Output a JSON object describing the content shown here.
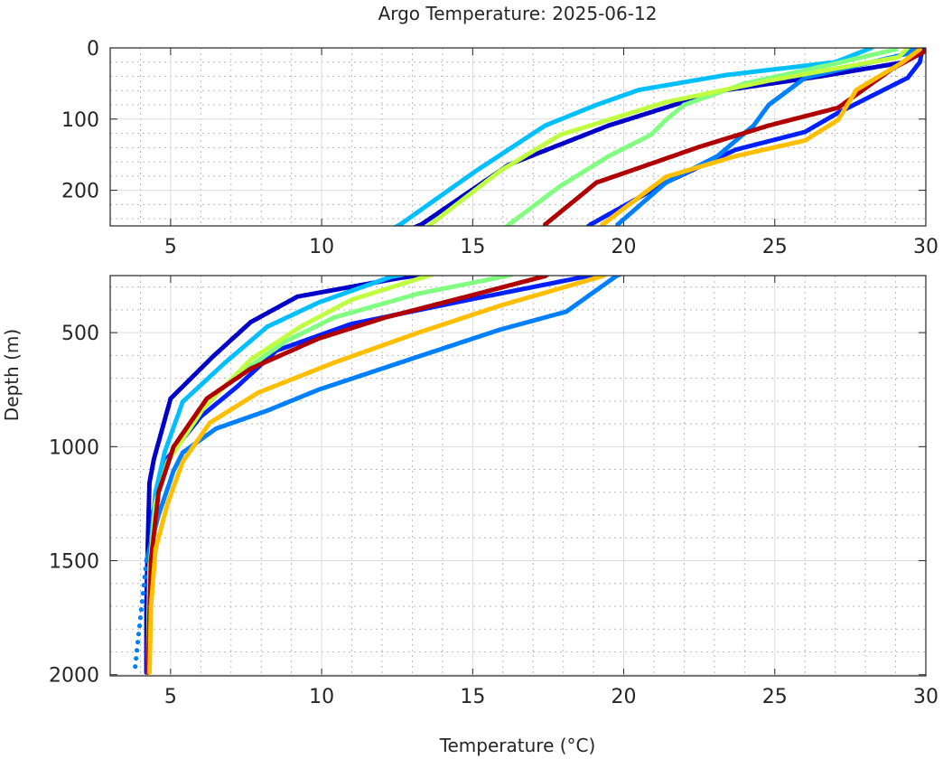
{
  "chart_data": {
    "type": "scatter",
    "title": "Argo Temperature: 2025-06-12",
    "xlabel": "Temperature (°C)",
    "ylabel": "Depth (m)",
    "xlim": [
      3,
      30
    ],
    "xticks": [
      "5",
      "10",
      "15",
      "20",
      "25",
      "30"
    ],
    "xtick_values": [
      5,
      10,
      15,
      20,
      25,
      30
    ],
    "grid": true,
    "minor_grid": true,
    "y_reversed": true,
    "panels": [
      {
        "ylim": [
          0,
          250
        ],
        "yticks": [
          "0",
          "100",
          "200"
        ],
        "ytick_values": [
          0,
          100,
          200
        ],
        "minor_step": 20
      },
      {
        "ylim": [
          250,
          2005
        ],
        "yticks": [
          "500",
          "1000",
          "1500",
          "2000"
        ],
        "ytick_values": [
          500,
          1000,
          1500,
          2000
        ],
        "minor_step": 100
      }
    ],
    "series": [
      {
        "color": "#0000c8",
        "points": [
          [
            29.8,
            0
          ],
          [
            29.3,
            20
          ],
          [
            26.5,
            40
          ],
          [
            23.1,
            61
          ],
          [
            19.5,
            109
          ],
          [
            16.2,
            164
          ],
          [
            13.3,
            248
          ],
          [
            12.6,
            260
          ],
          [
            9.2,
            342
          ],
          [
            7.65,
            454
          ],
          [
            6.4,
            605
          ],
          [
            5.0,
            789
          ],
          [
            4.45,
            1053
          ],
          [
            4.3,
            1158
          ],
          [
            4.25,
            1400
          ],
          [
            4.2,
            1700
          ],
          [
            4.2,
            2000
          ]
        ]
      },
      {
        "color": "#0020ff",
        "points": [
          [
            29.9,
            0
          ],
          [
            29.8,
            20
          ],
          [
            29.4,
            42
          ],
          [
            27.1,
            91
          ],
          [
            26.0,
            118
          ],
          [
            23.7,
            143
          ],
          [
            21.4,
            189
          ],
          [
            18.9,
            248
          ],
          [
            18.7,
            255
          ],
          [
            15.4,
            342
          ],
          [
            11.0,
            461
          ],
          [
            8.5,
            579
          ],
          [
            7.2,
            737
          ],
          [
            6.0,
            868
          ],
          [
            4.8,
            1066
          ],
          [
            4.4,
            1300
          ],
          [
            4.3,
            1600
          ],
          [
            4.25,
            2000
          ]
        ]
      },
      {
        "color": "#00bfff",
        "points": [
          [
            28.2,
            0
          ],
          [
            27.0,
            20
          ],
          [
            23.4,
            38
          ],
          [
            20.5,
            59
          ],
          [
            19.1,
            80
          ],
          [
            17.4,
            109
          ],
          [
            15.1,
            173
          ],
          [
            12.6,
            248
          ],
          [
            12.3,
            255
          ],
          [
            9.9,
            368
          ],
          [
            8.2,
            474
          ],
          [
            6.8,
            632
          ],
          [
            5.4,
            803
          ],
          [
            4.8,
            1026
          ],
          [
            4.5,
            1200
          ],
          [
            4.3,
            1500
          ],
          [
            4.25,
            2000
          ]
        ]
      },
      {
        "color": "#0080ff",
        "points": [
          [
            29.6,
            0
          ],
          [
            29.4,
            8
          ],
          [
            26.0,
            42
          ],
          [
            24.8,
            80
          ],
          [
            24.3,
            109
          ],
          [
            23.1,
            152
          ],
          [
            21.4,
            189
          ],
          [
            19.8,
            248
          ],
          [
            19.75,
            252
          ],
          [
            18.1,
            408
          ],
          [
            15.9,
            487
          ],
          [
            13.2,
            605
          ],
          [
            9.9,
            750
          ],
          [
            8.2,
            842
          ],
          [
            6.5,
            921
          ],
          [
            5.4,
            1026
          ],
          [
            5.1,
            1105
          ],
          [
            4.6,
            1300
          ],
          [
            4.2,
            1500
          ],
          [
            4.0,
            1750
          ],
          [
            3.8,
            2000
          ]
        ]
      },
      {
        "color": "#80ff80",
        "points": [
          [
            29.0,
            2
          ],
          [
            27.1,
            21
          ],
          [
            24.0,
            50
          ],
          [
            22.0,
            80
          ],
          [
            21.4,
            101
          ],
          [
            20.9,
            122
          ],
          [
            19.5,
            152
          ],
          [
            17.9,
            194
          ],
          [
            16.2,
            248
          ],
          [
            16.1,
            252
          ],
          [
            13.2,
            329
          ],
          [
            10.4,
            434
          ],
          [
            8.8,
            539
          ],
          [
            7.1,
            697
          ],
          [
            6.0,
            829
          ],
          [
            5.1,
            1000
          ],
          [
            4.6,
            1200
          ],
          [
            4.35,
            1500
          ],
          [
            4.25,
            2000
          ]
        ]
      },
      {
        "color": "#bfff40",
        "points": [
          [
            29.4,
            0
          ],
          [
            29.1,
            13
          ],
          [
            24.8,
            46
          ],
          [
            21.4,
            76
          ],
          [
            17.9,
            122
          ],
          [
            15.9,
            173
          ],
          [
            13.6,
            248
          ],
          [
            13.5,
            252
          ],
          [
            11.0,
            355
          ],
          [
            9.3,
            474
          ],
          [
            7.65,
            618
          ],
          [
            6.1,
            829
          ],
          [
            4.9,
            1066
          ],
          [
            4.5,
            1250
          ],
          [
            4.3,
            1550
          ],
          [
            4.25,
            2000
          ]
        ]
      },
      {
        "color": "#b00000",
        "points": [
          [
            30.0,
            4
          ],
          [
            28.9,
            29
          ],
          [
            27.1,
            84
          ],
          [
            24.8,
            109
          ],
          [
            22.5,
            139
          ],
          [
            20.2,
            173
          ],
          [
            19.1,
            189
          ],
          [
            17.4,
            248
          ],
          [
            17.4,
            252
          ],
          [
            14.8,
            342
          ],
          [
            12.1,
            434
          ],
          [
            9.9,
            526
          ],
          [
            7.65,
            658
          ],
          [
            6.2,
            789
          ],
          [
            5.1,
            1000
          ],
          [
            4.6,
            1200
          ],
          [
            4.35,
            1500
          ],
          [
            4.25,
            2000
          ]
        ]
      },
      {
        "color": "#ffbf00",
        "points": [
          [
            29.8,
            2
          ],
          [
            29.2,
            21
          ],
          [
            27.7,
            59
          ],
          [
            27.1,
            101
          ],
          [
            26.0,
            130
          ],
          [
            23.7,
            152
          ],
          [
            21.4,
            181
          ],
          [
            19.3,
            248
          ],
          [
            19.3,
            252
          ],
          [
            15.9,
            382
          ],
          [
            13.2,
            500
          ],
          [
            10.4,
            632
          ],
          [
            7.9,
            763
          ],
          [
            6.3,
            895
          ],
          [
            5.4,
            1066
          ],
          [
            4.9,
            1250
          ],
          [
            4.5,
            1450
          ],
          [
            4.35,
            1700
          ],
          [
            4.3,
            2000
          ]
        ]
      }
    ]
  }
}
